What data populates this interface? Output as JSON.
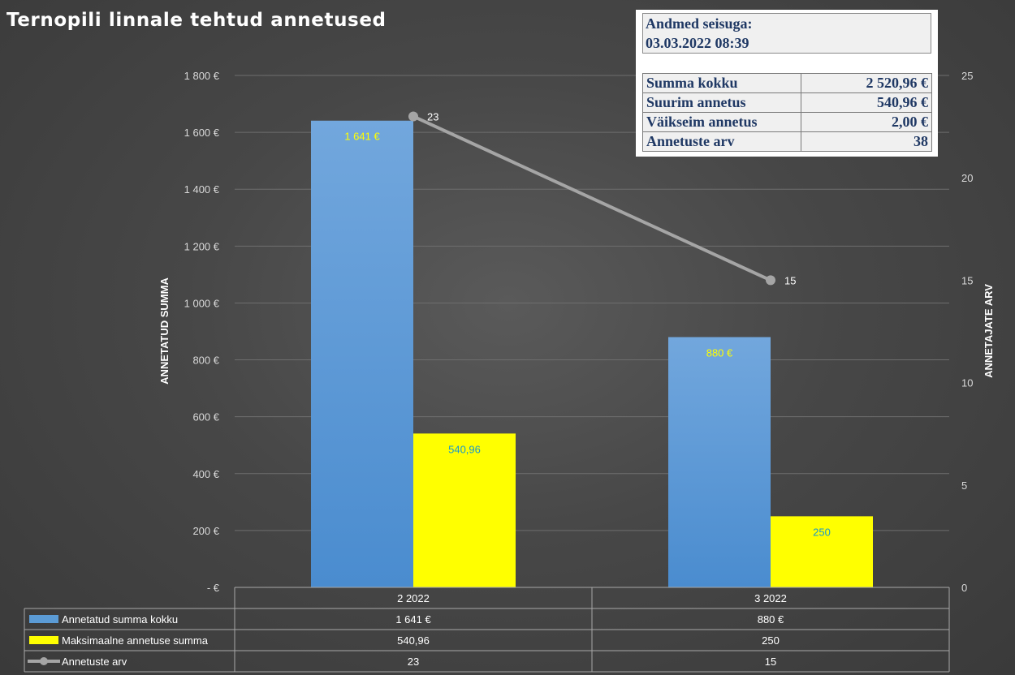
{
  "title": "Ternopili linnale tehtud annetused",
  "info": {
    "date_label": "Andmed seisuga:",
    "date_value": "03.03.2022 08:39",
    "rows": [
      {
        "label": "Summa kokku",
        "value": "2 520,96 €"
      },
      {
        "label": "Suurim annetus",
        "value": "540,96 €"
      },
      {
        "label": "Väikseim annetus",
        "value": "2,00 €"
      },
      {
        "label": "Annetuste arv",
        "value": "38"
      }
    ]
  },
  "colors": {
    "blue": "#5b9bd5",
    "yellow": "#ffff00",
    "line": "#a5a5a5"
  },
  "chart_data": {
    "type": "bar",
    "categories": [
      "2 2022",
      "3 2022"
    ],
    "series": [
      {
        "name": "Annetatud summa kokku",
        "values": [
          1641,
          880
        ],
        "labels": [
          "1 641 €",
          "880 €"
        ],
        "axis": "left",
        "type": "bar"
      },
      {
        "name": "Maksimaalne annetuse summa",
        "values": [
          540.96,
          250
        ],
        "labels": [
          "540,96",
          "250"
        ],
        "axis": "left",
        "type": "bar"
      },
      {
        "name": "Annetuste arv",
        "values": [
          23,
          15
        ],
        "labels": [
          "23",
          "15"
        ],
        "axis": "right",
        "type": "line"
      }
    ],
    "ylabel": "ANNETATUD SUMMA",
    "y2label": "ANNETAJATE ARV",
    "ylim": [
      0,
      1800
    ],
    "y2lim": [
      0,
      25
    ],
    "yticks": [
      {
        "value": 0,
        "label": "-  €"
      },
      {
        "value": 200,
        "label": "200 €"
      },
      {
        "value": 400,
        "label": "400 €"
      },
      {
        "value": 600,
        "label": "600 €"
      },
      {
        "value": 800,
        "label": "800 €"
      },
      {
        "value": 1000,
        "label": "1 000 €"
      },
      {
        "value": 1200,
        "label": "1 200 €"
      },
      {
        "value": 1400,
        "label": "1 400 €"
      },
      {
        "value": 1600,
        "label": "1 600 €"
      },
      {
        "value": 1800,
        "label": "1 800 €"
      }
    ],
    "y2ticks": [
      {
        "value": 0,
        "label": "0"
      },
      {
        "value": 5,
        "label": "5"
      },
      {
        "value": 10,
        "label": "10"
      },
      {
        "value": 15,
        "label": "15"
      },
      {
        "value": 20,
        "label": "20"
      },
      {
        "value": 25,
        "label": "25"
      }
    ],
    "grid": true,
    "data_table": {
      "rows": [
        {
          "name": "Annetatud summa kokku",
          "values": [
            "1 641 €",
            "880 €"
          ]
        },
        {
          "name": "Maksimaalne annetuse summa",
          "values": [
            "540,96",
            "250"
          ]
        },
        {
          "name": "Annetuste arv",
          "values": [
            "23",
            "15"
          ]
        }
      ]
    }
  }
}
